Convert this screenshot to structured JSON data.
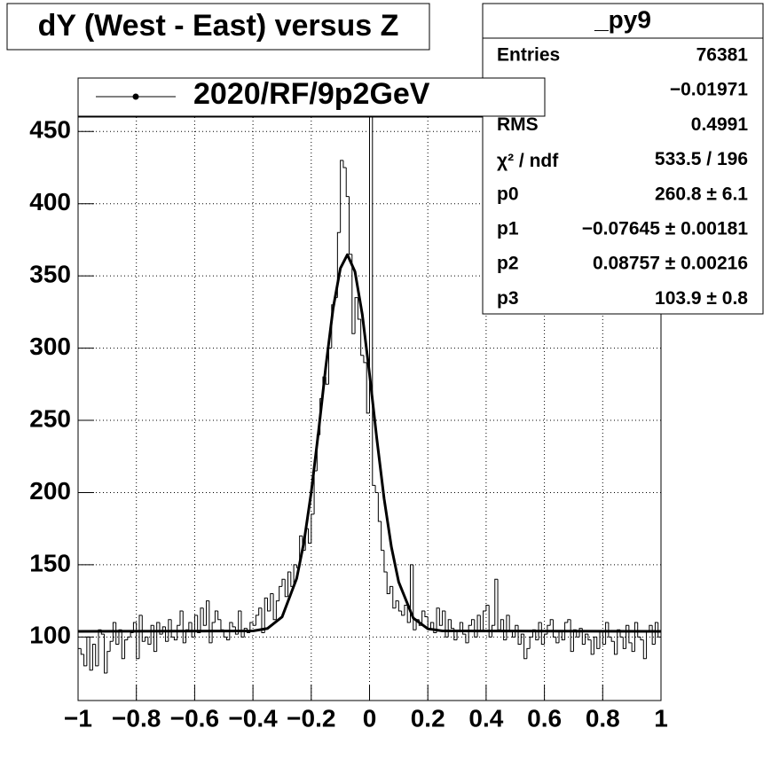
{
  "chart_data": {
    "type": "histogram",
    "title": "dY (West - East) versus Z",
    "bins": [
      -1,
      -0.99,
      -0.98,
      -0.97,
      -0.96,
      -0.95,
      -0.94,
      -0.93,
      -0.92,
      -0.91,
      -0.9,
      -0.89,
      -0.88,
      -0.87,
      -0.86,
      -0.85,
      -0.84,
      -0.83,
      -0.82,
      -0.81,
      -0.8,
      -0.79,
      -0.78,
      -0.77,
      -0.76,
      -0.75,
      -0.74,
      -0.73,
      -0.72,
      -0.71,
      -0.7,
      -0.69,
      -0.68,
      -0.67,
      -0.66,
      -0.65,
      -0.64,
      -0.63,
      -0.62,
      -0.61,
      -0.6,
      -0.59,
      -0.58,
      -0.57,
      -0.56,
      -0.55,
      -0.54,
      -0.53,
      -0.52,
      -0.51,
      -0.5,
      -0.49,
      -0.48,
      -0.47,
      -0.46,
      -0.45,
      -0.44,
      -0.43,
      -0.42,
      -0.41,
      -0.4,
      -0.39,
      -0.38,
      -0.37,
      -0.36,
      -0.35,
      -0.34,
      -0.33,
      -0.32,
      -0.31,
      -0.3,
      -0.29,
      -0.28,
      -0.27,
      -0.26,
      -0.25,
      -0.24,
      -0.23,
      -0.22,
      -0.21,
      -0.2,
      -0.19,
      -0.18,
      -0.17,
      -0.16,
      -0.15,
      -0.14,
      -0.13,
      -0.12,
      -0.11,
      -0.1,
      -0.09,
      -0.08,
      -0.07,
      -0.06,
      -0.05,
      -0.04,
      -0.03,
      -0.02,
      -0.01,
      0,
      0.01,
      0.02,
      0.03,
      0.04,
      0.05,
      0.06,
      0.07,
      0.08,
      0.09,
      0.1,
      0.11,
      0.12,
      0.13,
      0.14,
      0.15,
      0.16,
      0.17,
      0.18,
      0.19,
      0.2,
      0.21,
      0.22,
      0.23,
      0.24,
      0.25,
      0.26,
      0.27,
      0.28,
      0.29,
      0.3,
      0.31,
      0.32,
      0.33,
      0.34,
      0.35,
      0.36,
      0.37,
      0.38,
      0.39,
      0.4,
      0.41,
      0.42,
      0.43,
      0.44,
      0.45,
      0.46,
      0.47,
      0.48,
      0.49,
      0.5,
      0.51,
      0.52,
      0.53,
      0.54,
      0.55,
      0.56,
      0.57,
      0.58,
      0.59,
      0.6,
      0.61,
      0.62,
      0.63,
      0.64,
      0.65,
      0.66,
      0.67,
      0.68,
      0.69,
      0.7,
      0.71,
      0.72,
      0.73,
      0.74,
      0.75,
      0.76,
      0.77,
      0.78,
      0.79,
      0.8,
      0.81,
      0.82,
      0.83,
      0.84,
      0.85,
      0.86,
      0.87,
      0.88,
      0.89,
      0.9,
      0.91,
      0.92,
      0.93,
      0.94,
      0.95,
      0.96,
      0.97,
      0.98,
      0.99,
      1
    ],
    "values": [
      92,
      88,
      80,
      100,
      77,
      95,
      80,
      105,
      102,
      75,
      90,
      97,
      110,
      95,
      105,
      85,
      98,
      100,
      103,
      110,
      85,
      115,
      97,
      100,
      95,
      108,
      90,
      110,
      102,
      107,
      97,
      112,
      100,
      98,
      108,
      118,
      96,
      105,
      110,
      100,
      115,
      103,
      120,
      108,
      125,
      96,
      110,
      118,
      112,
      105,
      100,
      98,
      110,
      107,
      102,
      118,
      100,
      106,
      103,
      110,
      108,
      115,
      120,
      103,
      127,
      118,
      130,
      112,
      125,
      135,
      140,
      128,
      145,
      135,
      150,
      148,
      170,
      160,
      175,
      165,
      185,
      215,
      240,
      265,
      280,
      275,
      300,
      330,
      335,
      380,
      430,
      425,
      405,
      365,
      310,
      335,
      320,
      295,
      290,
      255,
      470,
      205,
      200,
      180,
      160,
      145,
      130,
      135,
      120,
      125,
      118,
      115,
      122,
      110,
      150,
      105,
      112,
      108,
      118,
      114,
      105,
      110,
      103,
      120,
      108,
      118,
      100,
      112,
      106,
      98,
      104,
      110,
      102,
      96,
      108,
      112,
      100,
      115,
      104,
      118,
      122,
      100,
      108,
      140,
      105,
      112,
      98,
      115,
      104,
      100,
      108,
      95,
      102,
      85,
      92,
      100,
      105,
      98,
      110,
      95,
      102,
      108,
      112,
      100,
      96,
      104,
      98,
      110,
      112,
      90,
      105,
      100,
      106,
      95,
      102,
      98,
      88,
      100,
      92,
      104,
      95,
      110,
      100,
      97,
      88,
      105,
      100,
      92,
      108,
      96,
      90,
      110,
      100,
      98,
      85,
      104,
      108,
      95,
      110,
      100
    ],
    "color": "#000000",
    "fit": {
      "x": [
        -1,
        -0.4,
        -0.35,
        -0.3,
        -0.25,
        -0.225,
        -0.2,
        -0.175,
        -0.15,
        -0.125,
        -0.1,
        -0.076,
        -0.05,
        -0.025,
        0,
        0.025,
        0.05,
        0.075,
        0.1,
        0.15,
        0.2,
        0.25,
        1
      ],
      "y": [
        103.9,
        104.2,
        105.9,
        113.9,
        140.5,
        165.7,
        200.2,
        242.3,
        287.2,
        327.5,
        355.3,
        364.7,
        353.0,
        323.5,
        282.1,
        237.2,
        195.8,
        162.3,
        138.1,
        113.1,
        105.7,
        104.2,
        103.9
      ]
    },
    "xlim": [
      -1,
      1
    ],
    "xticks": [
      {
        "value": -1,
        "label": "−1"
      },
      {
        "value": -0.8,
        "label": "−0.8"
      },
      {
        "value": -0.6,
        "label": "−0.6"
      },
      {
        "value": -0.4,
        "label": "−0.4"
      },
      {
        "value": -0.2,
        "label": "−0.2"
      },
      0,
      0.2,
      0.4,
      0.6,
      0.8,
      1
    ],
    "ylim": [
      56,
      460
    ],
    "yticks": [
      100,
      150,
      200,
      250,
      300,
      350,
      400,
      450
    ],
    "grid": true,
    "legend": {
      "label": "2020/RF/9p2GeV"
    },
    "stats": {
      "title": "_py9",
      "rows": [
        {
          "label": "Entries",
          "value": "76381"
        },
        {
          "value": "−0.01971"
        },
        {
          "label": "RMS",
          "value": "0.4991"
        },
        {
          "label": "χ² / ndf",
          "value": "533.5 / 196"
        },
        {
          "label": "p0",
          "value": "260.8 ± 6.1"
        },
        {
          "label": "p1",
          "value": "−0.07645 ± 0.00181"
        },
        {
          "label": "p2",
          "value": "0.08757 ± 0.00216"
        },
        {
          "label": "p3",
          "value": "103.9 ± 0.8"
        }
      ]
    }
  }
}
